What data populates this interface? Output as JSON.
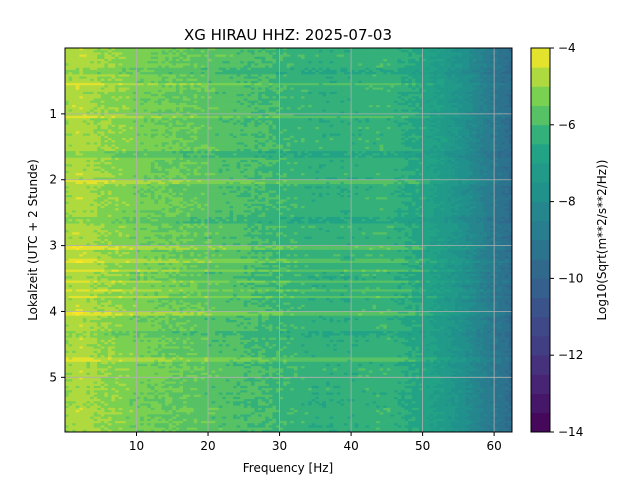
{
  "chart_data": {
    "type": "heatmap",
    "title": "XG HIRAU  HHZ: 2025-07-03",
    "xlabel": "Frequency [Hz]",
    "ylabel": "Lokalzeit (UTC + 2 Stunde)",
    "colorbar_label": "Log10(Sqrt(m**2/s**2/Hz))",
    "xlim": [
      0,
      62.5
    ],
    "ylim": [
      0,
      5.83
    ],
    "y_inverted": true,
    "x_ticks": [
      10,
      20,
      30,
      40,
      50,
      60
    ],
    "x_tick_labels": [
      "10",
      "20",
      "30",
      "40",
      "50",
      "60"
    ],
    "y_ticks": [
      1,
      2,
      3,
      4,
      5
    ],
    "y_tick_labels": [
      "1",
      "2",
      "3",
      "4",
      "5"
    ],
    "color_range": [
      -14,
      -4
    ],
    "colorbar_ticks": [
      -4,
      -6,
      -8,
      -10,
      -12,
      -14
    ],
    "colorbar_tick_labels": [
      "−4",
      "−6",
      "−8",
      "−10",
      "−12",
      "−14"
    ],
    "colormap": "viridis (discrete, 0.5 steps)",
    "grid": true,
    "grid_color": "#b0b0b0",
    "spectrum_profile": {
      "frequency_hz": [
        0,
        2,
        5,
        10,
        15,
        20,
        25,
        30,
        35,
        40,
        45,
        50,
        52,
        55,
        57,
        60,
        62.5
      ],
      "level": [
        -4.9,
        -4.7,
        -5.0,
        -5.3,
        -5.5,
        -5.7,
        -5.9,
        -6.1,
        -6.3,
        -6.3,
        -6.2,
        -6.7,
        -7.0,
        -7.6,
        -8.1,
        -9.0,
        -9.6
      ]
    },
    "bright_bands_hours": [
      0.55,
      1.05,
      2.03,
      3.02,
      3.22,
      3.38,
      3.55,
      3.68,
      3.78,
      4.02,
      4.72
    ],
    "dark_bands_hours": [
      0.35,
      1.6,
      2.6,
      4.35
    ]
  }
}
